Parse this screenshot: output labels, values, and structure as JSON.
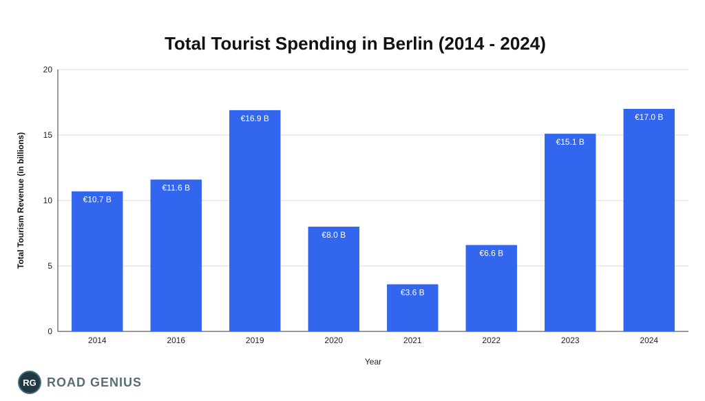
{
  "chart_data": {
    "type": "bar",
    "title": "Total Tourist Spending in Berlin (2014 - 2024)",
    "xlabel": "Year",
    "ylabel": "Total Tourism Revenue (in billions)",
    "categories": [
      "2014",
      "2016",
      "2019",
      "2020",
      "2021",
      "2022",
      "2023",
      "2024"
    ],
    "values": [
      10.7,
      11.6,
      16.9,
      8.0,
      3.6,
      6.6,
      15.1,
      17.0
    ],
    "data_labels": [
      "€10.7 B",
      "€11.6 B",
      "€16.9 B",
      "€8.0 B",
      "€3.6 B",
      "€6.6 B",
      "€15.1 B",
      "€17.0 B"
    ],
    "ylim": [
      0,
      20
    ],
    "yticks": [
      0,
      5,
      10,
      15,
      20
    ],
    "grid": true,
    "legend": "none",
    "bar_color": "#3366ee",
    "gridline_color": "#d9d9d9"
  },
  "brand": {
    "badge": "RG",
    "name": "ROAD GENIUS"
  }
}
